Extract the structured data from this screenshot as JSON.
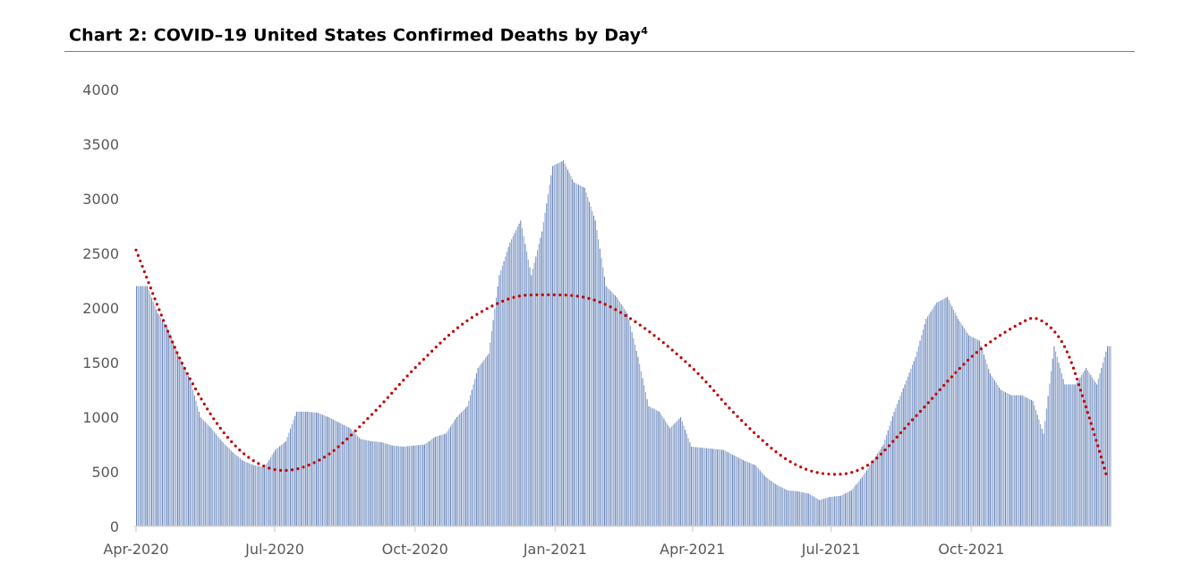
{
  "chart_data": {
    "type": "bar",
    "title": "Chart 2: COVID–19 United States Confirmed Deaths by Day",
    "title_footnote": "4",
    "xlabel": "",
    "ylabel": "",
    "ylim": [
      0,
      4000
    ],
    "yticks": [
      "0",
      "500",
      "1000",
      "1500",
      "2000",
      "2500",
      "3000",
      "3500",
      "4000"
    ],
    "xticks": [
      {
        "date": "2020-04-01",
        "label": "Apr-2020"
      },
      {
        "date": "2020-07-01",
        "label": "Jul-2020"
      },
      {
        "date": "2020-10-01",
        "label": "Oct-2020"
      },
      {
        "date": "2021-01-01",
        "label": "Jan-2021"
      },
      {
        "date": "2021-04-01",
        "label": "Apr-2021"
      },
      {
        "date": "2021-07-01",
        "label": "Jul-2021"
      },
      {
        "date": "2021-10-01",
        "label": "Oct-2021"
      }
    ],
    "grid": false,
    "colors": {
      "bars": "#8ea6cf",
      "trendline": "#c00000"
    },
    "series": [
      {
        "x_start": "2020-04-01",
        "x_step_days": 7,
        "values": [
          2200,
          2200,
          1950,
          1800,
          1550,
          1350,
          1000,
          900,
          780,
          680,
          600,
          560,
          540,
          700,
          780,
          1050,
          1050,
          1040,
          1000,
          950,
          900,
          800,
          780,
          770,
          740,
          730,
          740,
          750,
          820,
          850,
          1000,
          1100,
          1450,
          1580,
          2300,
          2600,
          2800,
          2300,
          2700,
          3300,
          3350,
          3150,
          3100,
          2800,
          2200,
          2100,
          1950,
          1550,
          1100,
          1050,
          900,
          1000,
          730,
          720,
          710,
          700,
          650,
          600,
          560,
          450,
          380,
          330,
          320,
          300,
          240,
          270,
          280,
          330,
          450,
          600,
          750,
          1050,
          1300,
          1550,
          1900,
          2050,
          2100,
          1900,
          1750,
          1700,
          1400,
          1250,
          1200,
          1200,
          1150,
          850,
          1650,
          1300,
          1300,
          1450,
          1300,
          1650
        ]
      }
    ],
    "trendline": {
      "style": "dotted",
      "points": [
        [
          "2020-04-01",
          2530
        ],
        [
          "2020-05-01",
          1500
        ],
        [
          "2020-06-01",
          800
        ],
        [
          "2020-07-01",
          520
        ],
        [
          "2020-08-01",
          620
        ],
        [
          "2020-09-01",
          1000
        ],
        [
          "2020-10-01",
          1450
        ],
        [
          "2020-11-01",
          1850
        ],
        [
          "2020-12-01",
          2080
        ],
        [
          "2020-12-25",
          2120
        ],
        [
          "2021-01-25",
          2080
        ],
        [
          "2021-02-25",
          1850
        ],
        [
          "2021-04-01",
          1450
        ],
        [
          "2021-05-01",
          1000
        ],
        [
          "2021-06-01",
          620
        ],
        [
          "2021-06-28",
          480
        ],
        [
          "2021-07-25",
          560
        ],
        [
          "2021-08-25",
          1000
        ],
        [
          "2021-10-01",
          1550
        ],
        [
          "2021-11-01",
          1850
        ],
        [
          "2021-11-15",
          1890
        ],
        [
          "2021-12-01",
          1650
        ],
        [
          "2021-12-15",
          1100
        ],
        [
          "2021-12-29",
          450
        ]
      ]
    }
  }
}
